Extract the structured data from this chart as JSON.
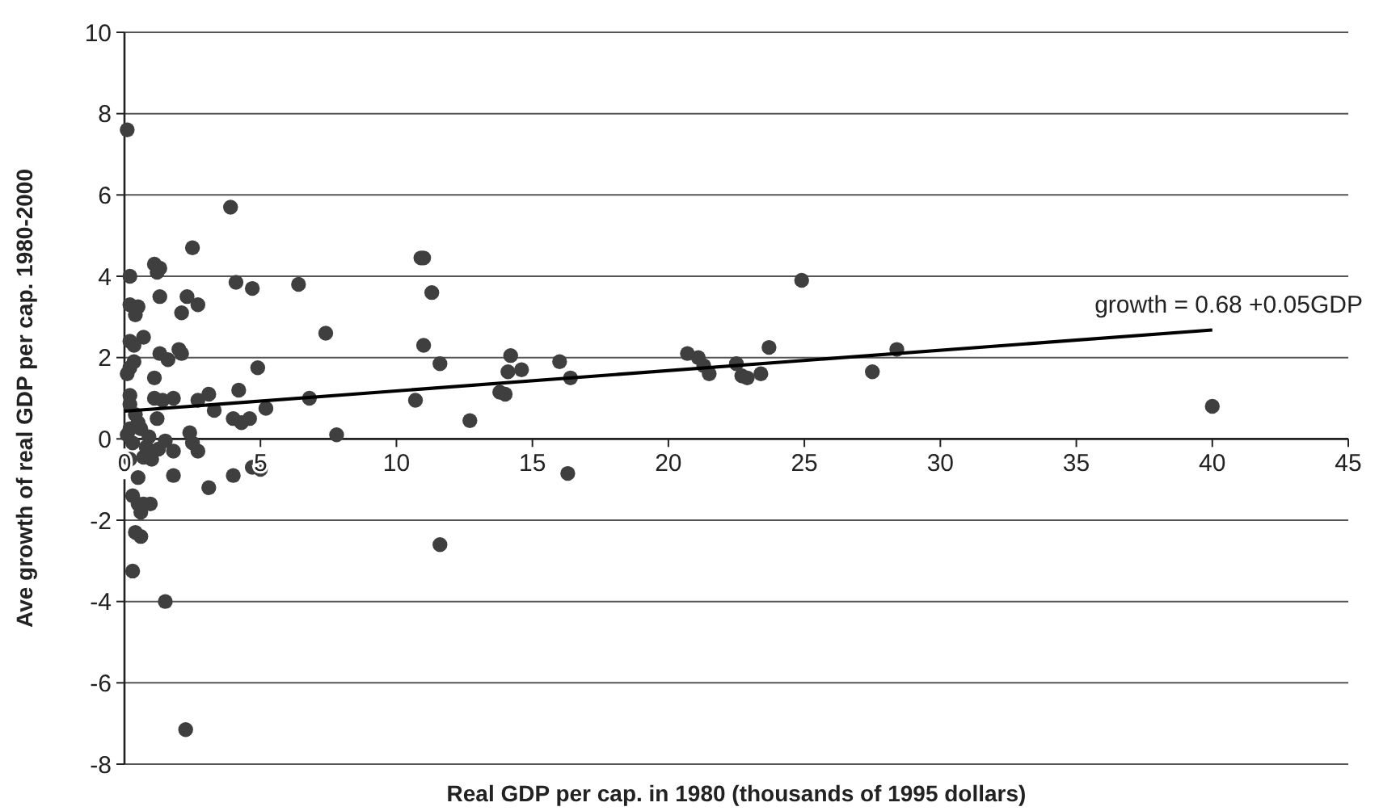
{
  "chart_data": {
    "type": "scatter",
    "xlabel": "Real GDP per cap. in 1980 (thousands of 1995 dollars)",
    "ylabel": "Ave growth of real GDP per cap. 1980-2000",
    "xlim": [
      0,
      45
    ],
    "xticks": [
      0,
      5,
      10,
      15,
      20,
      25,
      30,
      35,
      40,
      45
    ],
    "ylim": [
      -8,
      10
    ],
    "yticks": [
      -8,
      -6,
      -4,
      -2,
      0,
      2,
      4,
      6,
      8,
      10
    ],
    "grid": "y",
    "annotations": [
      "growth = 0.68 +0.05GDP"
    ],
    "series": [
      {
        "color": "#3f3f3f",
        "marker": "circle",
        "x": [
          0.1,
          3.9,
          2.5,
          1.1,
          1.3,
          1.2,
          0.2,
          4.1,
          4.7,
          6.4,
          1.3,
          2.3,
          2.7,
          0.2,
          0.5,
          0.4,
          2.1,
          0.2,
          0.7,
          0.35,
          1.3,
          2.0,
          2.1,
          1.6,
          0.2,
          0.35,
          0.1,
          1.1,
          4.9,
          4.2,
          3.1,
          0.2,
          1.1,
          1.8,
          1.4,
          2.7,
          3.3,
          0.2,
          4.0,
          4.3,
          4.6,
          5.2,
          0.6,
          0.2,
          0.9,
          1.5,
          2.4,
          2.5,
          1.8,
          2.7,
          0.7,
          1.25,
          0.5,
          1.8,
          3.1,
          4.0,
          4.7,
          5.0,
          0.3,
          0.5,
          0.7,
          0.95,
          0.6,
          0.4,
          0.6,
          0.3,
          1.5,
          2.25,
          0.1,
          0.3,
          0.5,
          0.2,
          1.0,
          0.4,
          1.2,
          0.8,
          11.0,
          10.9,
          11.3,
          7.4,
          11.0,
          11.6,
          14.2,
          14.1,
          14.6,
          16.0,
          16.4,
          13.8,
          14.0,
          6.8,
          10.7,
          12.7,
          7.8,
          16.3,
          11.6,
          24.9,
          20.7,
          21.1,
          21.3,
          21.5,
          22.5,
          22.7,
          22.9,
          23.4,
          23.7,
          27.5,
          28.4,
          40.0
        ],
        "values": [
          7.6,
          5.7,
          4.7,
          4.3,
          4.2,
          4.1,
          4.0,
          3.85,
          3.7,
          3.8,
          3.5,
          3.5,
          3.3,
          3.3,
          3.25,
          3.05,
          3.1,
          2.4,
          2.5,
          2.3,
          2.1,
          2.2,
          2.1,
          1.95,
          1.75,
          1.9,
          1.6,
          1.5,
          1.75,
          1.2,
          1.1,
          1.07,
          1.0,
          1.0,
          0.95,
          0.95,
          0.7,
          0.85,
          0.5,
          0.4,
          0.5,
          0.75,
          0.25,
          0.25,
          0.05,
          -0.05,
          0.15,
          -0.1,
          -0.3,
          -0.3,
          -0.45,
          -0.25,
          -0.95,
          -0.9,
          -1.2,
          -0.9,
          -0.7,
          -0.75,
          -1.4,
          -1.6,
          -1.6,
          -1.6,
          -1.8,
          -2.3,
          -2.4,
          -3.25,
          -4.0,
          -7.15,
          0.1,
          -0.1,
          0.4,
          -0.5,
          -0.5,
          0.6,
          0.5,
          -0.2,
          4.45,
          4.45,
          3.6,
          2.6,
          2.3,
          1.85,
          2.05,
          1.65,
          1.7,
          1.9,
          1.5,
          1.15,
          1.1,
          1.0,
          0.95,
          0.45,
          0.1,
          -0.85,
          -2.6,
          3.9,
          2.1,
          2.0,
          1.8,
          1.6,
          1.85,
          1.55,
          1.5,
          1.6,
          2.25,
          1.65,
          2.2,
          0.8
        ]
      },
      {
        "type": "line",
        "color": "#000000",
        "x": [
          0,
          40
        ],
        "values": [
          0.68,
          2.68
        ]
      }
    ]
  }
}
